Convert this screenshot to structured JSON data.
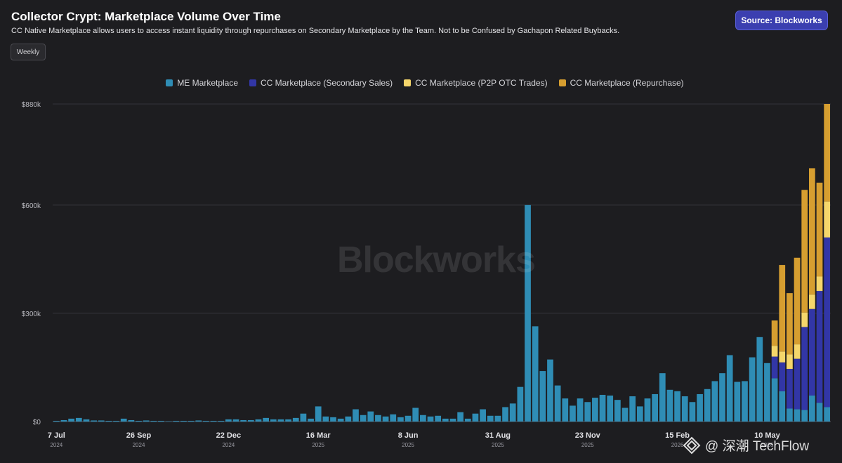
{
  "header": {
    "title": "Collector Crypt: Marketplace Volume Over Time",
    "subtitle": "CC Native Marketplace allows users to access instant liquidity through repurchases on Secondary Marketplace by the Team. Not to be Confused by Gachapon Related Buybacks.",
    "source_label": "Source: Blockworks",
    "period_label": "Weekly"
  },
  "watermark": "Blockworks",
  "credit": {
    "logo_icon": "techflow-logo-icon",
    "text": "@ 深潮 TechFlow"
  },
  "colors": {
    "background": "#1d1d20",
    "me": "#2f8db5",
    "cc_secondary": "#3236a6",
    "cc_p2p": "#f5d66b",
    "cc_repurchase": "#d69e30",
    "grid": "#34343a"
  },
  "chart_data": {
    "type": "bar",
    "stacked": true,
    "title": "Collector Crypt: Marketplace Volume Over Time",
    "legend_position": "top-center",
    "grid": true,
    "ylim": [
      0,
      880000
    ],
    "y_ticks": [
      {
        "value": 0,
        "label": "$0"
      },
      {
        "value": 300000,
        "label": "$300k"
      },
      {
        "value": 600000,
        "label": "$600k"
      },
      {
        "value": 880000,
        "label": "$880k"
      }
    ],
    "x_ticks": [
      {
        "index": 0,
        "label": "7 Jul",
        "year": "2024"
      },
      {
        "index": 11,
        "label": "26 Sep",
        "year": "2024"
      },
      {
        "index": 23,
        "label": "22 Dec",
        "year": "2024"
      },
      {
        "index": 35,
        "label": "16 Mar",
        "year": "2025"
      },
      {
        "index": 47,
        "label": "8 Jun",
        "year": "2025"
      },
      {
        "index": 59,
        "label": "31 Aug",
        "year": "2025"
      },
      {
        "index": 71,
        "label": "23 Nov",
        "year": "2025"
      },
      {
        "index": 83,
        "label": "15 Feb",
        "year": "2026"
      },
      {
        "index": 95,
        "label": "10 May",
        "year": "2026"
      }
    ],
    "series": [
      {
        "name": "ME Marketplace",
        "color": "#2f8db5",
        "values": [
          2000,
          4000,
          8000,
          10000,
          6000,
          3000,
          3000,
          2000,
          2000,
          8000,
          4000,
          2000,
          3000,
          2000,
          2000,
          1000,
          2000,
          2000,
          2000,
          3000,
          2000,
          2000,
          2000,
          6000,
          6000,
          4000,
          4000,
          6000,
          10000,
          6000,
          6000,
          6000,
          10000,
          22000,
          8000,
          42000,
          14000,
          12000,
          8000,
          14000,
          34000,
          18000,
          28000,
          18000,
          14000,
          20000,
          12000,
          16000,
          38000,
          18000,
          14000,
          16000,
          8000,
          8000,
          26000,
          8000,
          22000,
          34000,
          16000,
          16000,
          40000,
          50000,
          96000,
          600000,
          264000,
          140000,
          172000,
          100000,
          64000,
          44000,
          64000,
          54000,
          66000,
          74000,
          72000,
          60000,
          38000,
          70000,
          42000,
          64000,
          76000,
          134000,
          88000,
          84000,
          70000,
          54000,
          76000,
          90000,
          112000,
          134000,
          184000,
          110000,
          112000,
          178000,
          234000,
          162000,
          120000,
          84000,
          36000,
          34000,
          32000,
          72000,
          52000,
          40000
        ]
      },
      {
        "name": "CC Marketplace (Secondary Sales)",
        "color": "#3236a6",
        "values": [
          0,
          0,
          0,
          0,
          0,
          0,
          0,
          0,
          0,
          0,
          0,
          0,
          0,
          0,
          0,
          0,
          0,
          0,
          0,
          0,
          0,
          0,
          0,
          0,
          0,
          0,
          0,
          0,
          0,
          0,
          0,
          0,
          0,
          0,
          0,
          0,
          0,
          0,
          0,
          0,
          0,
          0,
          0,
          0,
          0,
          0,
          0,
          0,
          0,
          0,
          0,
          0,
          0,
          0,
          0,
          0,
          0,
          0,
          0,
          0,
          0,
          0,
          0,
          0,
          0,
          0,
          0,
          0,
          0,
          0,
          0,
          0,
          0,
          0,
          0,
          0,
          0,
          0,
          0,
          0,
          0,
          0,
          0,
          0,
          0,
          0,
          0,
          0,
          0,
          0,
          0,
          0,
          0,
          0,
          0,
          0,
          60000,
          80000,
          110000,
          140000,
          230000,
          240000,
          310000,
          470000
        ]
      },
      {
        "name": "CC Marketplace (P2P OTC Trades)",
        "color": "#f5d66b",
        "values": [
          0,
          0,
          0,
          0,
          0,
          0,
          0,
          0,
          0,
          0,
          0,
          0,
          0,
          0,
          0,
          0,
          0,
          0,
          0,
          0,
          0,
          0,
          0,
          0,
          0,
          0,
          0,
          0,
          0,
          0,
          0,
          0,
          0,
          0,
          0,
          0,
          0,
          0,
          0,
          0,
          0,
          0,
          0,
          0,
          0,
          0,
          0,
          0,
          0,
          0,
          0,
          0,
          0,
          0,
          0,
          0,
          0,
          0,
          0,
          0,
          0,
          0,
          0,
          0,
          0,
          0,
          0,
          0,
          0,
          0,
          0,
          0,
          0,
          0,
          0,
          0,
          0,
          0,
          0,
          0,
          0,
          0,
          0,
          0,
          0,
          0,
          0,
          0,
          0,
          0,
          0,
          0,
          0,
          0,
          0,
          0,
          30000,
          30000,
          40000,
          40000,
          40000,
          40000,
          40000,
          100000
        ]
      },
      {
        "name": "CC Marketplace (Repurchase)",
        "color": "#d69e30",
        "values": [
          0,
          0,
          0,
          0,
          0,
          0,
          0,
          0,
          0,
          0,
          0,
          0,
          0,
          0,
          0,
          0,
          0,
          0,
          0,
          0,
          0,
          0,
          0,
          0,
          0,
          0,
          0,
          0,
          0,
          0,
          0,
          0,
          0,
          0,
          0,
          0,
          0,
          0,
          0,
          0,
          0,
          0,
          0,
          0,
          0,
          0,
          0,
          0,
          0,
          0,
          0,
          0,
          0,
          0,
          0,
          0,
          0,
          0,
          0,
          0,
          0,
          0,
          0,
          0,
          0,
          0,
          0,
          0,
          0,
          0,
          0,
          0,
          0,
          0,
          0,
          0,
          0,
          0,
          0,
          0,
          0,
          0,
          0,
          0,
          0,
          0,
          0,
          0,
          0,
          0,
          0,
          0,
          0,
          0,
          0,
          0,
          70000,
          240000,
          170000,
          240000,
          340000,
          350000,
          260000,
          270000
        ]
      }
    ]
  }
}
